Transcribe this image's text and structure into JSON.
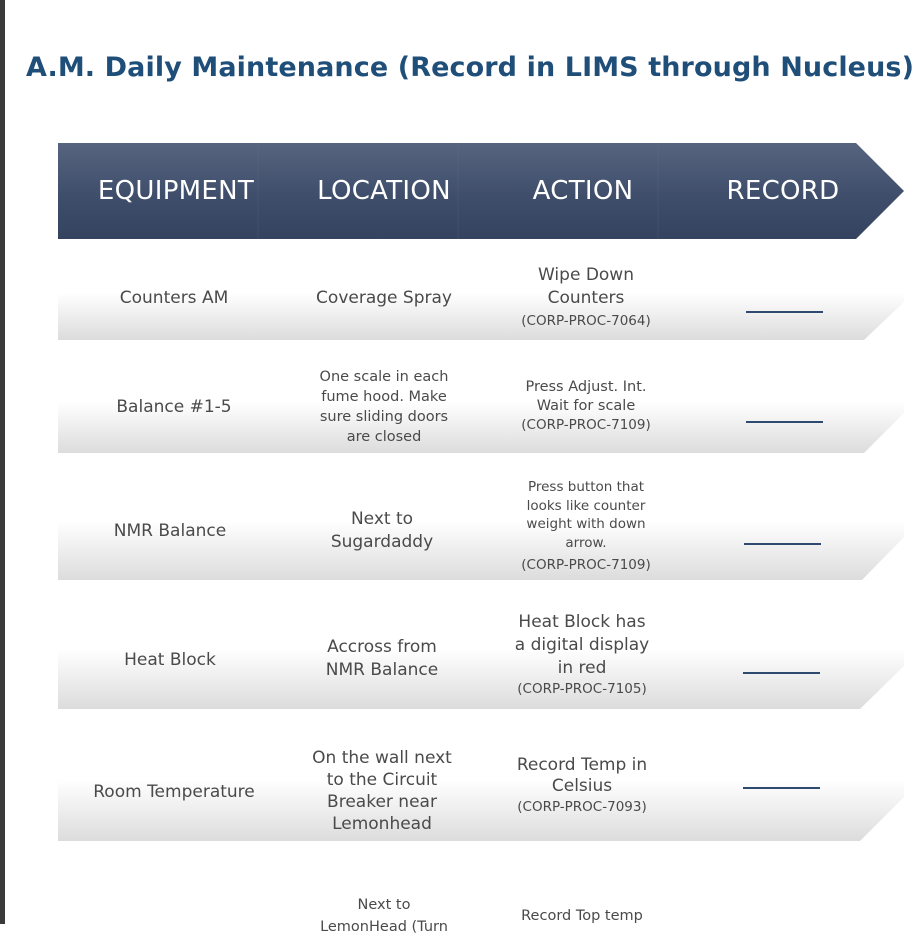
{
  "title": "A.M. Daily Maintenance (Record in LIMS through Nucleus)",
  "header": {
    "equipment": "EQUIPMENT",
    "location": "LOCATION",
    "action": "ACTION",
    "record": "RECORD"
  },
  "rows": [
    {
      "equipment": "Counters AM",
      "location": [
        "Coverage Spray"
      ],
      "action": [
        "Wipe Down",
        "Counters"
      ],
      "proc": "CORP-PROC-7064"
    },
    {
      "equipment": "Balance #1-5",
      "location": [
        "One scale in each",
        "fume hood. Make",
        "sure sliding doors",
        "are closed"
      ],
      "action": [
        "Press Adjust. Int.",
        "Wait for scale"
      ],
      "proc": "CORP-PROC-7109"
    },
    {
      "equipment": "NMR Balance",
      "location": [
        "Next to",
        "Sugardaddy"
      ],
      "action": [
        "Press button that",
        "looks like counter",
        "weight with down",
        "arrow."
      ],
      "proc": "CORP-PROC-7109"
    },
    {
      "equipment": "Heat Block",
      "location": [
        "Accross from",
        "NMR Balance"
      ],
      "action": [
        "Heat Block has",
        "a digital display",
        "in red"
      ],
      "proc": "CORP-PROC-7105"
    },
    {
      "equipment": "Room Temperature",
      "location": [
        "On the wall next",
        "to the Circuit",
        "Breaker near",
        "Lemonhead"
      ],
      "action": [
        "Record Temp in",
        "Celsius"
      ],
      "proc": "CORP-PROC-7093"
    },
    {
      "equipment": "",
      "location": [
        "Next to",
        "LemonHead (Turn"
      ],
      "action": [
        "Record Top temp"
      ],
      "proc": ""
    }
  ]
}
